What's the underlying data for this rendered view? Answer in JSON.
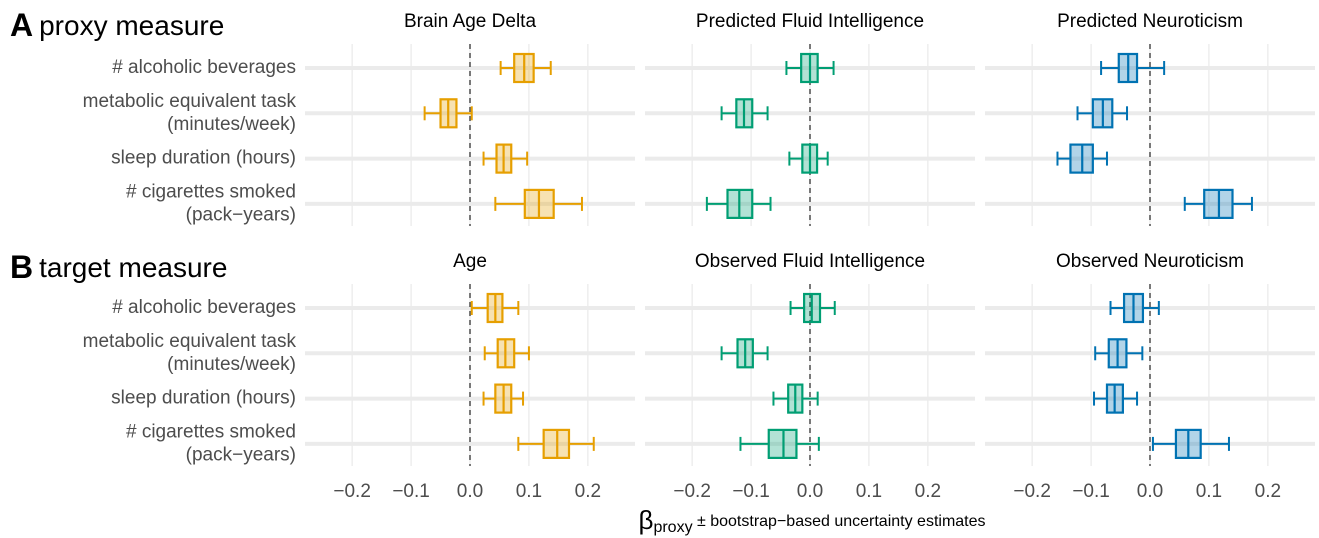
{
  "rows": [
    {
      "letter": "A",
      "label": "proxy measure",
      "categories": [
        [
          "# alcoholic beverages"
        ],
        [
          "metabolic equivalent task",
          "(minutes/week)"
        ],
        [
          "sleep duration (hours)"
        ],
        [
          "# cigarettes smoked",
          "(pack−years)"
        ]
      ]
    },
    {
      "letter": "B",
      "label": "target measure",
      "categories": [
        [
          "# alcoholic beverages"
        ],
        [
          "metabolic equivalent task",
          "(minutes/week)"
        ],
        [
          "sleep duration (hours)"
        ],
        [
          "# cigarettes smoked",
          "(pack−years)"
        ]
      ]
    }
  ],
  "xlabel": {
    "symbol": "β",
    "subscript": "proxy",
    "text": " ± bootstrap−based uncertainty estimates"
  },
  "chart_data": [
    {
      "type": "box",
      "title": "Brain Age Delta",
      "color": "#E69F00",
      "xlim": [
        -0.28,
        0.28
      ],
      "xticks": [
        -0.2,
        -0.1,
        0,
        0.1,
        0.2
      ],
      "vline": 0,
      "boxes": [
        {
          "whislo": 0.052,
          "q1": 0.075,
          "med": 0.092,
          "q3": 0.108,
          "whishi": 0.137
        },
        {
          "whislo": -0.077,
          "q1": -0.05,
          "med": -0.037,
          "q3": -0.023,
          "whishi": 0.003
        },
        {
          "whislo": 0.023,
          "q1": 0.045,
          "med": 0.057,
          "q3": 0.07,
          "whishi": 0.097
        },
        {
          "whislo": 0.043,
          "q1": 0.093,
          "med": 0.117,
          "q3": 0.142,
          "whishi": 0.19
        }
      ]
    },
    {
      "type": "box",
      "title": "Predicted Fluid Intelligence",
      "color": "#009E73",
      "xlim": [
        -0.28,
        0.28
      ],
      "xticks": [
        -0.2,
        -0.1,
        0,
        0.1,
        0.2
      ],
      "vline": 0,
      "boxes": [
        {
          "whislo": -0.04,
          "q1": -0.015,
          "med": 0.0,
          "q3": 0.013,
          "whishi": 0.04
        },
        {
          "whislo": -0.15,
          "q1": -0.125,
          "med": -0.112,
          "q3": -0.098,
          "whishi": -0.072
        },
        {
          "whislo": -0.035,
          "q1": -0.013,
          "med": 0.0,
          "q3": 0.012,
          "whishi": 0.03
        },
        {
          "whislo": -0.175,
          "q1": -0.14,
          "med": -0.12,
          "q3": -0.098,
          "whishi": -0.067
        }
      ]
    },
    {
      "type": "box",
      "title": "Predicted Neuroticism",
      "color": "#0072B2",
      "xlim": [
        -0.28,
        0.28
      ],
      "xticks": [
        -0.2,
        -0.1,
        0,
        0.1,
        0.2
      ],
      "vline": 0,
      "boxes": [
        {
          "whislo": -0.083,
          "q1": -0.053,
          "med": -0.037,
          "q3": -0.022,
          "whishi": 0.024
        },
        {
          "whislo": -0.123,
          "q1": -0.097,
          "med": -0.08,
          "q3": -0.064,
          "whishi": -0.039
        },
        {
          "whislo": -0.157,
          "q1": -0.135,
          "med": -0.115,
          "q3": -0.097,
          "whishi": -0.073
        },
        {
          "whislo": 0.059,
          "q1": 0.092,
          "med": 0.117,
          "q3": 0.14,
          "whishi": 0.173
        }
      ]
    },
    {
      "type": "box",
      "title": "Age",
      "color": "#E69F00",
      "xlim": [
        -0.28,
        0.28
      ],
      "xticks": [
        {
          "value": -0.2,
          "label": "−0.2"
        },
        {
          "value": -0.1,
          "label": "−0.1"
        },
        {
          "value": 0,
          "label": "0.0"
        },
        {
          "value": 0.1,
          "label": "0.1"
        },
        {
          "value": 0.2,
          "label": "0.2"
        }
      ],
      "vline": 0,
      "boxes": [
        {
          "whislo": 0.003,
          "q1": 0.03,
          "med": 0.043,
          "q3": 0.055,
          "whishi": 0.082
        },
        {
          "whislo": 0.025,
          "q1": 0.047,
          "med": 0.06,
          "q3": 0.075,
          "whishi": 0.1
        },
        {
          "whislo": 0.023,
          "q1": 0.043,
          "med": 0.057,
          "q3": 0.07,
          "whishi": 0.09
        },
        {
          "whislo": 0.082,
          "q1": 0.125,
          "med": 0.148,
          "q3": 0.168,
          "whishi": 0.21
        }
      ]
    },
    {
      "type": "box",
      "title": "Observed Fluid Intelligence",
      "color": "#009E73",
      "xlim": [
        -0.28,
        0.28
      ],
      "xticks": [
        {
          "value": -0.2,
          "label": "−0.2"
        },
        {
          "value": -0.1,
          "label": "−0.1"
        },
        {
          "value": 0,
          "label": "0.0"
        },
        {
          "value": 0.1,
          "label": "0.1"
        },
        {
          "value": 0.2,
          "label": "0.2"
        }
      ],
      "vline": 0,
      "boxes": [
        {
          "whislo": -0.033,
          "q1": -0.01,
          "med": 0.003,
          "q3": 0.017,
          "whishi": 0.042
        },
        {
          "whislo": -0.15,
          "q1": -0.123,
          "med": -0.11,
          "q3": -0.097,
          "whishi": -0.072
        },
        {
          "whislo": -0.062,
          "q1": -0.037,
          "med": -0.025,
          "q3": -0.013,
          "whishi": 0.013
        },
        {
          "whislo": -0.118,
          "q1": -0.07,
          "med": -0.045,
          "q3": -0.023,
          "whishi": 0.015
        }
      ]
    },
    {
      "type": "box",
      "title": "Observed Neuroticism",
      "color": "#0072B2",
      "xlim": [
        -0.28,
        0.28
      ],
      "xticks": [
        {
          "value": -0.2,
          "label": "−0.2"
        },
        {
          "value": -0.1,
          "label": "−0.1"
        },
        {
          "value": 0,
          "label": "0.0"
        },
        {
          "value": 0.1,
          "label": "0.1"
        },
        {
          "value": 0.2,
          "label": "0.2"
        }
      ],
      "vline": 0,
      "boxes": [
        {
          "whislo": -0.067,
          "q1": -0.044,
          "med": -0.028,
          "q3": -0.012,
          "whishi": 0.015
        },
        {
          "whislo": -0.093,
          "q1": -0.07,
          "med": -0.055,
          "q3": -0.04,
          "whishi": -0.013
        },
        {
          "whislo": -0.095,
          "q1": -0.073,
          "med": -0.06,
          "q3": -0.046,
          "whishi": -0.022
        },
        {
          "whislo": 0.005,
          "q1": 0.044,
          "med": 0.065,
          "q3": 0.086,
          "whishi": 0.134
        }
      ]
    }
  ]
}
